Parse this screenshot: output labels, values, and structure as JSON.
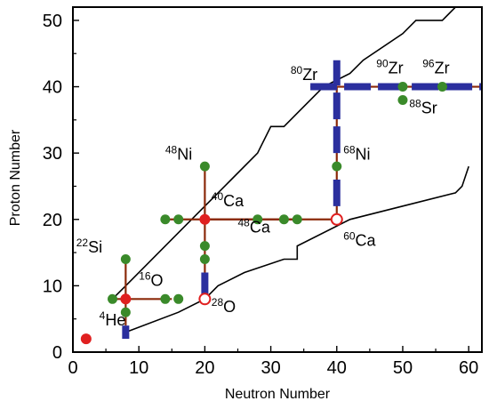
{
  "chart_data": {
    "type": "scatter",
    "title": "",
    "xlabel": "Neutron Number",
    "ylabel": "Proton Number",
    "xlim": [
      0,
      62
    ],
    "ylim": [
      0,
      52
    ],
    "xticks": [
      0,
      10,
      20,
      30,
      40,
      50,
      60
    ],
    "yticks": [
      0,
      10,
      20,
      30,
      40,
      50
    ],
    "grid": false,
    "colors": {
      "measured": "#3a8a2a",
      "doubly_magic": "#e02020",
      "bar": "#2b2f9e",
      "chain": "#8b2a0a",
      "driplines": "#000000"
    },
    "driplines": {
      "proton": [
        [
          6,
          8
        ],
        [
          8,
          10
        ],
        [
          16,
          18
        ],
        [
          20,
          22
        ],
        [
          24,
          26
        ],
        [
          28,
          30
        ],
        [
          30,
          34
        ],
        [
          32,
          34
        ],
        [
          38,
          40
        ],
        [
          42,
          42
        ],
        [
          44,
          44
        ],
        [
          50,
          48
        ],
        [
          52,
          50
        ],
        [
          56,
          50
        ],
        [
          58,
          52
        ]
      ],
      "neutron": [
        [
          8,
          3
        ],
        [
          16,
          6
        ],
        [
          20,
          8
        ],
        [
          22,
          10
        ],
        [
          26,
          12
        ],
        [
          32,
          14
        ],
        [
          34,
          14
        ],
        [
          34,
          16
        ],
        [
          42,
          20
        ],
        [
          50,
          22
        ],
        [
          58,
          24
        ],
        [
          59,
          25
        ],
        [
          60,
          28
        ]
      ]
    },
    "chains": [
      {
        "x": [
          6,
          15
        ],
        "y": [
          8,
          8
        ]
      },
      {
        "x": [
          8,
          8
        ],
        "y": [
          4,
          14
        ]
      },
      {
        "x": [
          14,
          34
        ],
        "y": [
          20,
          20
        ]
      },
      {
        "x": [
          20,
          20
        ],
        "y": [
          8,
          28
        ]
      },
      {
        "x": [
          20,
          40
        ],
        "y": [
          20,
          20
        ]
      },
      {
        "x": [
          40,
          40
        ],
        "y": [
          20,
          40
        ]
      },
      {
        "x": [
          36,
          62
        ],
        "y": [
          40,
          40
        ]
      }
    ],
    "bars": [
      {
        "x": [
          36,
          62
        ],
        "y": [
          40,
          40
        ]
      },
      {
        "x": [
          40,
          40
        ],
        "y": [
          30,
          44
        ]
      },
      {
        "x": [
          40,
          40
        ],
        "y": [
          22,
          26
        ]
      },
      {
        "x": [
          20,
          20
        ],
        "y": [
          8,
          12
        ]
      },
      {
        "x": [
          8,
          8
        ],
        "y": [
          2,
          4
        ]
      }
    ],
    "measured_points": [
      {
        "x": 6,
        "y": 8
      },
      {
        "x": 8,
        "y": 14
      },
      {
        "x": 8,
        "y": 6
      },
      {
        "x": 14,
        "y": 8
      },
      {
        "x": 16,
        "y": 8
      },
      {
        "x": 14,
        "y": 20
      },
      {
        "x": 16,
        "y": 20
      },
      {
        "x": 20,
        "y": 28
      },
      {
        "x": 20,
        "y": 16
      },
      {
        "x": 20,
        "y": 14
      },
      {
        "x": 28,
        "y": 20
      },
      {
        "x": 32,
        "y": 20
      },
      {
        "x": 34,
        "y": 20
      },
      {
        "x": 40,
        "y": 28
      },
      {
        "x": 50,
        "y": 40
      },
      {
        "x": 50,
        "y": 38
      },
      {
        "x": 56,
        "y": 40
      }
    ],
    "doubly_magic_points": [
      {
        "x": 2,
        "y": 2
      },
      {
        "x": 8,
        "y": 8
      },
      {
        "x": 20,
        "y": 20
      }
    ],
    "open_points": [
      {
        "x": 20,
        "y": 8
      },
      {
        "x": 40,
        "y": 20
      }
    ],
    "annotations": [
      {
        "mass": "4",
        "element": "He",
        "x": 4,
        "y": 4
      },
      {
        "mass": "16",
        "element": "O",
        "x": 10,
        "y": 10
      },
      {
        "mass": "22",
        "element": "Si",
        "x": 0.5,
        "y": 15
      },
      {
        "mass": "28",
        "element": "O",
        "x": 21,
        "y": 6
      },
      {
        "mass": "48",
        "element": "Ni",
        "x": 14,
        "y": 29
      },
      {
        "mass": "40",
        "element": "Ca",
        "x": 21,
        "y": 22
      },
      {
        "mass": "48",
        "element": "Ca",
        "x": 25,
        "y": 18
      },
      {
        "mass": "60",
        "element": "Ca",
        "x": 41,
        "y": 16
      },
      {
        "mass": "68",
        "element": "Ni",
        "x": 41,
        "y": 29
      },
      {
        "mass": "80",
        "element": "Zr",
        "x": 33,
        "y": 41
      },
      {
        "mass": "90",
        "element": "Zr",
        "x": 46,
        "y": 42
      },
      {
        "mass": "96",
        "element": "Zr",
        "x": 53,
        "y": 42
      },
      {
        "mass": "88",
        "element": "Sr",
        "x": 51,
        "y": 36
      }
    ]
  }
}
